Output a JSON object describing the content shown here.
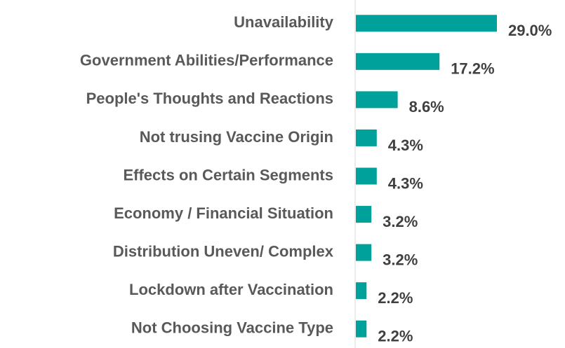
{
  "chart_data": {
    "type": "bar",
    "orientation": "horizontal",
    "categories": [
      "Unavailability",
      "Government Abilities/Performance",
      "People's Thoughts and Reactions",
      "Not trusing Vaccine Origin",
      "Effects on Certain Segments",
      "Economy / Financial Situation",
      "Distribution Uneven/ Complex",
      "Lockdown after Vaccination",
      "Not Choosing Vaccine Type"
    ],
    "values": [
      29.0,
      17.2,
      8.6,
      4.3,
      4.3,
      3.2,
      3.2,
      2.2,
      2.2
    ],
    "value_labels": [
      "29.0%",
      "17.2%",
      "8.6%",
      "4.3%",
      "4.3%",
      "3.2%",
      "3.2%",
      "2.2%",
      "2.2%"
    ],
    "color": "#00a19a",
    "xlim": [
      0,
      43
    ]
  }
}
